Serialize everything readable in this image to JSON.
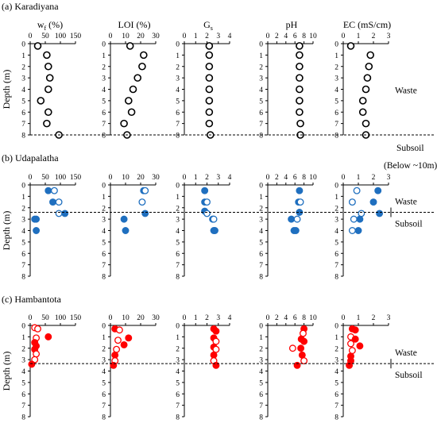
{
  "figure": {
    "y_axis_label": "Depth (m)",
    "depth_ticks": [
      "0",
      "1",
      "2",
      "3",
      "4",
      "5",
      "6",
      "7",
      "8"
    ],
    "headers": {
      "wf_base": "w",
      "wf_sub": "f",
      "wf_unit": " (%)",
      "loi": "LOI (%)",
      "gs_base": "G",
      "gs_sub": "s",
      "ph": "pH",
      "ec": "EC (mS/cm)"
    },
    "tick_labels": {
      "wf": [
        "0",
        "50",
        "100",
        "150"
      ],
      "loi": [
        "0",
        "10",
        "20",
        "30"
      ],
      "gs": [
        "0",
        "1",
        "2",
        "3",
        "4"
      ],
      "ph": [
        "0",
        "2",
        "4",
        "6",
        "8",
        "10"
      ],
      "ec": [
        "0",
        "1",
        "2",
        "3"
      ]
    },
    "colors": {
      "udapalatha": "#1f6fbf",
      "hambantota": "#ff0000",
      "karadiyana": "#000000"
    }
  },
  "panels": [
    {
      "title": "(a) Karadiyana",
      "boundary_depth": 8,
      "upper_label": "Waste",
      "lower_label": "Subsoil",
      "extra_label": "(Below ~10m)",
      "show_headers": true
    },
    {
      "title": "(b) Udapalatha",
      "boundary_depth": 2.4,
      "upper_label": "Waste",
      "lower_label": "Subsoil",
      "extra_label": "",
      "show_headers": false
    },
    {
      "title": "(c) Hambantota",
      "boundary_depth": 3.35,
      "upper_label": "Waste",
      "lower_label": "Subsoil",
      "extra_label": "",
      "show_headers": false
    }
  ],
  "chart_data": [
    {
      "type": "scatter",
      "title": "(a) Karadiyana",
      "ylabel": "Depth (m)",
      "ylim": [
        8,
        0
      ],
      "series": [
        {
          "variable": "wf",
          "xlim": [
            0,
            150
          ],
          "points": [
            {
              "x": 25,
              "y": 0.2,
              "filled": false
            },
            {
              "x": 55,
              "y": 1,
              "filled": false
            },
            {
              "x": 60,
              "y": 2,
              "filled": false
            },
            {
              "x": 65,
              "y": 3,
              "filled": false
            },
            {
              "x": 60,
              "y": 4,
              "filled": false
            },
            {
              "x": 35,
              "y": 5,
              "filled": false
            },
            {
              "x": 60,
              "y": 6,
              "filled": false
            },
            {
              "x": 55,
              "y": 7,
              "filled": false
            },
            {
              "x": 95,
              "y": 8,
              "filled": false
            }
          ]
        },
        {
          "variable": "loi",
          "xlim": [
            0,
            30
          ],
          "points": [
            {
              "x": 13,
              "y": 0.2,
              "filled": false
            },
            {
              "x": 22,
              "y": 1,
              "filled": false
            },
            {
              "x": 21,
              "y": 2,
              "filled": false
            },
            {
              "x": 18,
              "y": 3,
              "filled": false
            },
            {
              "x": 15,
              "y": 4,
              "filled": false
            },
            {
              "x": 12,
              "y": 5,
              "filled": false
            },
            {
              "x": 14,
              "y": 6,
              "filled": false
            },
            {
              "x": 9,
              "y": 7,
              "filled": false
            },
            {
              "x": 11,
              "y": 8,
              "filled": false
            }
          ]
        },
        {
          "variable": "gs",
          "xlim": [
            0,
            4
          ],
          "points": [
            {
              "x": 2.2,
              "y": 0.2,
              "filled": false
            },
            {
              "x": 2.2,
              "y": 1,
              "filled": false
            },
            {
              "x": 2.2,
              "y": 2,
              "filled": false
            },
            {
              "x": 2.2,
              "y": 3,
              "filled": false
            },
            {
              "x": 2.2,
              "y": 4,
              "filled": false
            },
            {
              "x": 2.2,
              "y": 5,
              "filled": false
            },
            {
              "x": 2.2,
              "y": 6,
              "filled": false
            },
            {
              "x": 2.2,
              "y": 7,
              "filled": false
            },
            {
              "x": 2.3,
              "y": 8,
              "filled": false
            }
          ]
        },
        {
          "variable": "ph",
          "xlim": [
            0,
            10
          ],
          "points": [
            {
              "x": 7,
              "y": 0.2,
              "filled": false
            },
            {
              "x": 7,
              "y": 1,
              "filled": false
            },
            {
              "x": 7,
              "y": 2,
              "filled": false
            },
            {
              "x": 7,
              "y": 3,
              "filled": false
            },
            {
              "x": 7,
              "y": 4,
              "filled": false
            },
            {
              "x": 7,
              "y": 5,
              "filled": false
            },
            {
              "x": 7,
              "y": 6,
              "filled": false
            },
            {
              "x": 7.2,
              "y": 7,
              "filled": false
            },
            {
              "x": 7.2,
              "y": 8,
              "filled": false
            }
          ]
        },
        {
          "variable": "ec",
          "xlim": [
            0,
            3
          ],
          "points": [
            {
              "x": 0.5,
              "y": 0.2,
              "filled": false
            },
            {
              "x": 1.8,
              "y": 1,
              "filled": false
            },
            {
              "x": 1.7,
              "y": 2,
              "filled": false
            },
            {
              "x": 1.6,
              "y": 3,
              "filled": false
            },
            {
              "x": 1.5,
              "y": 4,
              "filled": false
            },
            {
              "x": 1.3,
              "y": 5,
              "filled": false
            },
            {
              "x": 1.3,
              "y": 6,
              "filled": false
            },
            {
              "x": 1.5,
              "y": 7,
              "filled": false
            },
            {
              "x": 1.5,
              "y": 8,
              "filled": false
            }
          ]
        }
      ]
    },
    {
      "type": "scatter",
      "title": "(b) Udapalatha",
      "ylabel": "Depth (m)",
      "ylim": [
        8,
        0
      ],
      "series": [
        {
          "variable": "wf",
          "xlim": [
            0,
            150
          ],
          "points": [
            {
              "x": 60,
              "y": 0.5,
              "filled": true
            },
            {
              "x": 80,
              "y": 0.5,
              "filled": false
            },
            {
              "x": 75,
              "y": 1.5,
              "filled": true
            },
            {
              "x": 95,
              "y": 1.5,
              "filled": false
            },
            {
              "x": 95,
              "y": 2.5,
              "filled": false
            },
            {
              "x": 115,
              "y": 2.5,
              "filled": true
            },
            {
              "x": 15,
              "y": 3,
              "filled": true
            },
            {
              "x": 20,
              "y": 3,
              "filled": true
            },
            {
              "x": 20,
              "y": 4,
              "filled": true
            }
          ]
        },
        {
          "variable": "loi",
          "xlim": [
            0,
            30
          ],
          "points": [
            {
              "x": 22,
              "y": 0.5,
              "filled": true
            },
            {
              "x": 23,
              "y": 0.5,
              "filled": false
            },
            {
              "x": 21,
              "y": 1.5,
              "filled": false
            },
            {
              "x": 23,
              "y": 2.5,
              "filled": true
            },
            {
              "x": 9,
              "y": 3,
              "filled": true
            },
            {
              "x": 10,
              "y": 4,
              "filled": true
            }
          ]
        },
        {
          "variable": "gs",
          "xlim": [
            0,
            4
          ],
          "points": [
            {
              "x": 1.8,
              "y": 0.5,
              "filled": true
            },
            {
              "x": 1.8,
              "y": 1.5,
              "filled": true
            },
            {
              "x": 2.0,
              "y": 1.5,
              "filled": false
            },
            {
              "x": 1.8,
              "y": 2.3,
              "filled": true
            },
            {
              "x": 2.0,
              "y": 2.5,
              "filled": false
            },
            {
              "x": 2.5,
              "y": 3,
              "filled": true
            },
            {
              "x": 2.6,
              "y": 3,
              "filled": false
            },
            {
              "x": 2.6,
              "y": 4,
              "filled": true
            },
            {
              "x": 2.7,
              "y": 4,
              "filled": true
            }
          ]
        },
        {
          "variable": "ph",
          "xlim": [
            0,
            10
          ],
          "points": [
            {
              "x": 7,
              "y": 0.5,
              "filled": true
            },
            {
              "x": 6.8,
              "y": 1.5,
              "filled": true
            },
            {
              "x": 7.2,
              "y": 1.5,
              "filled": false
            },
            {
              "x": 7,
              "y": 2.4,
              "filled": true
            },
            {
              "x": 5.2,
              "y": 3,
              "filled": true
            },
            {
              "x": 6.5,
              "y": 3,
              "filled": false
            },
            {
              "x": 5.8,
              "y": 4,
              "filled": true
            },
            {
              "x": 6.2,
              "y": 4,
              "filled": true
            }
          ]
        },
        {
          "variable": "ec",
          "xlim": [
            0,
            3
          ],
          "points": [
            {
              "x": 2.3,
              "y": 0.5,
              "filled": true
            },
            {
              "x": 0.9,
              "y": 0.5,
              "filled": false
            },
            {
              "x": 2.0,
              "y": 1.5,
              "filled": true
            },
            {
              "x": 0.6,
              "y": 1.5,
              "filled": false
            },
            {
              "x": 2.4,
              "y": 2.5,
              "filled": true
            },
            {
              "x": 1.2,
              "y": 2.5,
              "filled": false
            },
            {
              "x": 0.7,
              "y": 3,
              "filled": false
            },
            {
              "x": 1.1,
              "y": 3,
              "filled": true
            },
            {
              "x": 0.6,
              "y": 4,
              "filled": false
            },
            {
              "x": 1.0,
              "y": 4,
              "filled": true
            }
          ]
        }
      ]
    },
    {
      "type": "scatter",
      "title": "(c) Hambantota",
      "ylabel": "Depth (m)",
      "ylim": [
        8,
        0
      ],
      "series": [
        {
          "variable": "wf",
          "xlim": [
            0,
            150
          ],
          "points": [
            {
              "x": 15,
              "y": 0.2,
              "filled": false
            },
            {
              "x": 25,
              "y": 0.3,
              "filled": false
            },
            {
              "x": 60,
              "y": 1,
              "filled": true
            },
            {
              "x": 20,
              "y": 1.1,
              "filled": false
            },
            {
              "x": 15,
              "y": 1.5,
              "filled": true
            },
            {
              "x": 20,
              "y": 1.8,
              "filled": true
            },
            {
              "x": 15,
              "y": 2.1,
              "filled": true
            },
            {
              "x": 20,
              "y": 2.5,
              "filled": false
            },
            {
              "x": 15,
              "y": 3,
              "filled": false
            },
            {
              "x": 5,
              "y": 3.4,
              "filled": true
            }
          ]
        },
        {
          "variable": "loi",
          "xlim": [
            0,
            30
          ],
          "points": [
            {
              "x": 3,
              "y": 0.3,
              "filled": true
            },
            {
              "x": 6,
              "y": 0.4,
              "filled": false
            },
            {
              "x": 12,
              "y": 1.1,
              "filled": true
            },
            {
              "x": 5,
              "y": 1.3,
              "filled": false
            },
            {
              "x": 9,
              "y": 1.7,
              "filled": true
            },
            {
              "x": 4,
              "y": 2.1,
              "filled": false
            },
            {
              "x": 3,
              "y": 2.6,
              "filled": true
            },
            {
              "x": 3,
              "y": 3.1,
              "filled": false
            },
            {
              "x": 2,
              "y": 3.5,
              "filled": true
            }
          ]
        },
        {
          "variable": "gs",
          "xlim": [
            0,
            4
          ],
          "points": [
            {
              "x": 2.6,
              "y": 0.3,
              "filled": true
            },
            {
              "x": 2.8,
              "y": 0.5,
              "filled": true
            },
            {
              "x": 2.6,
              "y": 1.1,
              "filled": true
            },
            {
              "x": 2.8,
              "y": 1.4,
              "filled": false
            },
            {
              "x": 2.6,
              "y": 1.9,
              "filled": true
            },
            {
              "x": 2.8,
              "y": 2.1,
              "filled": false
            },
            {
              "x": 2.6,
              "y": 2.6,
              "filled": true
            },
            {
              "x": 2.6,
              "y": 3.1,
              "filled": false
            },
            {
              "x": 2.8,
              "y": 3.5,
              "filled": true
            }
          ]
        },
        {
          "variable": "ph",
          "xlim": [
            0,
            10
          ],
          "points": [
            {
              "x": 8,
              "y": 0.3,
              "filled": true
            },
            {
              "x": 7.8,
              "y": 0.7,
              "filled": false
            },
            {
              "x": 7.4,
              "y": 1.2,
              "filled": true
            },
            {
              "x": 8,
              "y": 1.4,
              "filled": true
            },
            {
              "x": 5.5,
              "y": 2.0,
              "filled": false
            },
            {
              "x": 7.3,
              "y": 2.0,
              "filled": true
            },
            {
              "x": 7.6,
              "y": 2.6,
              "filled": true
            },
            {
              "x": 8,
              "y": 3.1,
              "filled": false
            },
            {
              "x": 6.5,
              "y": 3.5,
              "filled": true
            }
          ]
        },
        {
          "variable": "ec",
          "xlim": [
            0,
            3
          ],
          "points": [
            {
              "x": 0.6,
              "y": 0.3,
              "filled": true
            },
            {
              "x": 0.8,
              "y": 0.4,
              "filled": true
            },
            {
              "x": 0.5,
              "y": 1.0,
              "filled": false
            },
            {
              "x": 0.8,
              "y": 1.2,
              "filled": true
            },
            {
              "x": 0.5,
              "y": 1.6,
              "filled": false
            },
            {
              "x": 1.1,
              "y": 1.8,
              "filled": true
            },
            {
              "x": 0.6,
              "y": 2.2,
              "filled": false
            },
            {
              "x": 0.5,
              "y": 2.7,
              "filled": true
            },
            {
              "x": 0.5,
              "y": 3.1,
              "filled": true
            },
            {
              "x": 0.4,
              "y": 3.5,
              "filled": true
            }
          ]
        }
      ]
    }
  ]
}
